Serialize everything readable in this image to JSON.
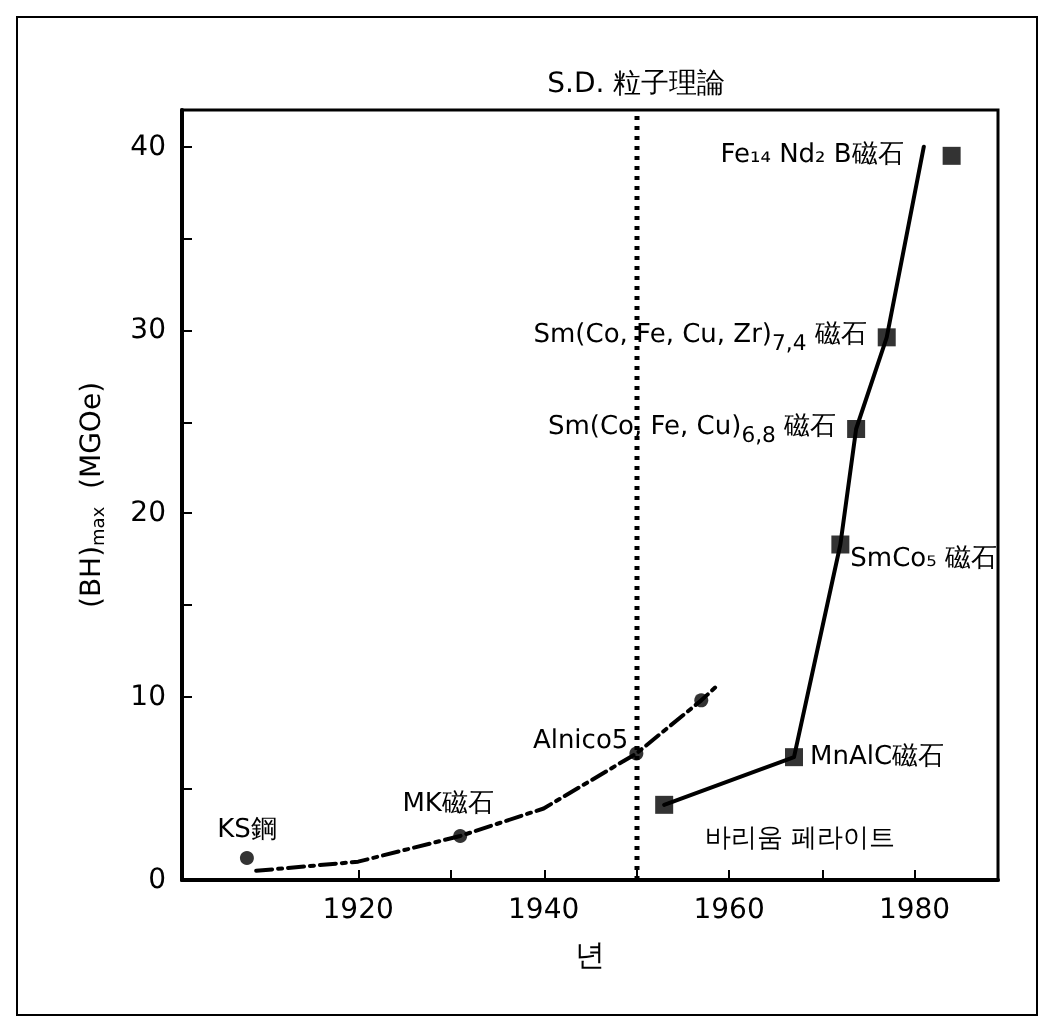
{
  "chart_data": {
    "type": "line",
    "xlabel": "년",
    "ylabel": "(BH)$_{max}$  (MGOe)",
    "xlim": [
      1901,
      1989
    ],
    "xticks": [
      1920,
      {
        "value": 1930,
        "label": null
      },
      1940,
      {
        "value": 1950,
        "label": null
      },
      1960,
      {
        "value": 1970,
        "label": null
      },
      1980
    ],
    "ylim": [
      0,
      42
    ],
    "yticks": [
      0,
      {
        "value": 5,
        "label": null
      },
      10,
      {
        "value": 15,
        "label": null
      },
      20,
      {
        "value": 25,
        "label": null
      },
      30,
      {
        "value": 35,
        "label": null
      },
      40
    ],
    "grid": false,
    "series": [
      {
        "color": "#000000",
        "marker": "none",
        "line_style": "dashed",
        "x": [
          1909,
          1920,
          1931,
          1940,
          1950,
          1957,
          1958.5
        ],
        "values": [
          0.5,
          1,
          2.4,
          3.9,
          6.9,
          9.8,
          10.5
        ]
      },
      {
        "type": "scatter",
        "color": "#000000",
        "marker": "circle",
        "x": [
          1908,
          1931,
          1950,
          1957
        ],
        "values": [
          1.2,
          2.4,
          6.9,
          9.8
        ]
      },
      {
        "color": "#000000",
        "marker": "none",
        "line_style": "solid",
        "x": [
          1953,
          1967,
          1972,
          1973.7,
          1977,
          1981
        ],
        "values": [
          4.1,
          6.7,
          18.3,
          24.6,
          29.6,
          40
        ]
      },
      {
        "type": "scatter",
        "color": "#000000",
        "marker": "square",
        "x": [
          1953,
          1967,
          1972,
          1973.7,
          1977,
          1984
        ],
        "values": [
          4.1,
          6.7,
          18.3,
          24.6,
          29.6,
          39.5
        ]
      }
    ],
    "ref_lines": [
      {
        "axis": "x",
        "value": 1950,
        "label": "S.D. 粒子理論",
        "line_style": "dotted"
      }
    ],
    "annotations": [
      {
        "text": "KS鋼",
        "x": 1908,
        "y": 1.2
      },
      {
        "text": "MK磁石",
        "x": 1931,
        "y": 2.4
      },
      {
        "text": "Alnico5",
        "x": 1950,
        "y": 6.9
      },
      {
        "text": "바리움 페라이트",
        "x": 1953,
        "y": 4.1
      },
      {
        "text": "MnAlC磁石",
        "x": 1967,
        "y": 6.7
      },
      {
        "text": "SmCo₅ 磁石",
        "x": 1972,
        "y": 18.3
      },
      {
        "text": "Sm(Co, Fe, Cu)$_{6,8}$ 磁石",
        "x": 1973.7,
        "y": 24.6
      },
      {
        "text": "Sm(Co, Fe, Cu, Zr)$_{7,4}$ 磁石",
        "x": 1977,
        "y": 29.6
      },
      {
        "text": "Fe₁₄ Nd₂ B磁石",
        "x": 1984,
        "y": 39.5
      }
    ]
  }
}
